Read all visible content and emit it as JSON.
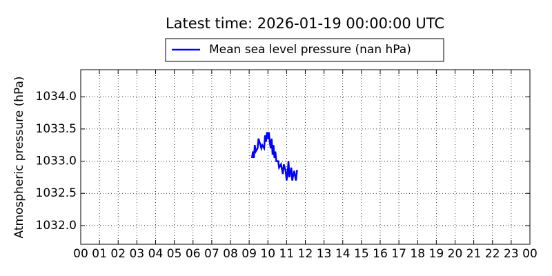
{
  "chart_data": {
    "type": "line",
    "title": "Latest time: 2026-01-19 00:00:00 UTC",
    "y_label": "Atmospheric pressure (hPa)",
    "x": [
      9.15,
      9.2,
      9.25,
      9.3,
      9.35,
      9.45,
      9.5,
      9.55,
      9.65,
      9.7,
      9.8,
      9.85,
      9.9,
      9.95,
      10.0,
      10.05,
      10.1,
      10.15,
      10.2,
      10.25,
      10.3,
      10.35,
      10.4,
      10.45,
      10.55,
      10.6,
      10.7,
      10.8,
      10.85,
      10.95,
      11.0,
      11.05,
      11.1,
      11.15,
      11.25,
      11.3,
      11.4,
      11.5,
      11.55,
      11.6
    ],
    "series": [
      {
        "name": "Mean sea level pressure (nan hPa)",
        "color": "#0000ff",
        "values": [
          1033.05,
          1033.15,
          1033.05,
          1033.25,
          1033.15,
          1033.2,
          1033.35,
          1033.3,
          1033.2,
          1033.25,
          1033.2,
          1033.4,
          1033.3,
          1033.45,
          1033.35,
          1033.45,
          1033.3,
          1033.2,
          1033.35,
          1033.1,
          1033.25,
          1033.05,
          1033.15,
          1033.0,
          1033.0,
          1032.9,
          1032.95,
          1032.8,
          1032.95,
          1032.85,
          1032.7,
          1032.8,
          1033.0,
          1032.75,
          1032.9,
          1032.7,
          1032.85,
          1032.7,
          1032.85,
          1032.85
        ]
      }
    ],
    "xlim": [
      0,
      24
    ],
    "xticks": [
      {
        "value": 0,
        "label": "00"
      },
      {
        "value": 1,
        "label": "01"
      },
      {
        "value": 2,
        "label": "02"
      },
      {
        "value": 3,
        "label": "03"
      },
      {
        "value": 4,
        "label": "04"
      },
      {
        "value": 5,
        "label": "05"
      },
      {
        "value": 6,
        "label": "06"
      },
      {
        "value": 7,
        "label": "07"
      },
      {
        "value": 8,
        "label": "08"
      },
      {
        "value": 9,
        "label": "09"
      },
      {
        "value": 10,
        "label": "10"
      },
      {
        "value": 11,
        "label": "11"
      },
      {
        "value": 12,
        "label": "12"
      },
      {
        "value": 13,
        "label": "13"
      },
      {
        "value": 14,
        "label": "14"
      },
      {
        "value": 15,
        "label": "15"
      },
      {
        "value": 16,
        "label": "16"
      },
      {
        "value": 17,
        "label": "17"
      },
      {
        "value": 18,
        "label": "18"
      },
      {
        "value": 19,
        "label": "19"
      },
      {
        "value": 20,
        "label": "20"
      },
      {
        "value": 21,
        "label": "21"
      },
      {
        "value": 22,
        "label": "22"
      },
      {
        "value": 23,
        "label": "23"
      },
      {
        "value": 24,
        "label": "00"
      }
    ],
    "ylim": [
      1031.71,
      1034.42
    ],
    "yticks": [
      {
        "value": 1032.0,
        "label": "1032.0"
      },
      {
        "value": 1032.5,
        "label": "1032.5"
      },
      {
        "value": 1033.0,
        "label": "1033.0"
      },
      {
        "value": 1033.5,
        "label": "1033.5"
      },
      {
        "value": 1034.0,
        "label": "1034.0"
      }
    ],
    "grid": true
  }
}
